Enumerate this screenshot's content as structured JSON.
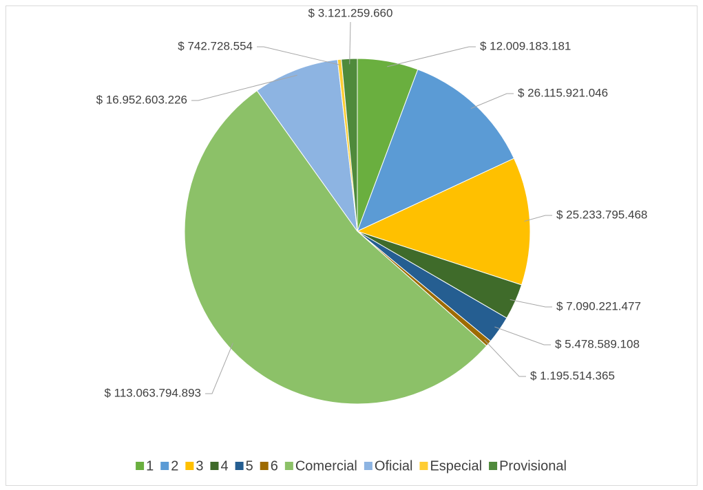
{
  "chart_data": {
    "type": "pie",
    "categories": [
      "1",
      "2",
      "3",
      "4",
      "5",
      "6",
      "Comercial",
      "Oficial",
      "Especial",
      "Provisional"
    ],
    "values": [
      12009183181,
      26115921046,
      25233795468,
      7090221477,
      5478589108,
      1195514365,
      113063794893,
      16952603226,
      742728554,
      3121259660
    ],
    "value_labels": [
      "$ 12.009.183.181",
      "$ 26.115.921.046",
      "$ 25.233.795.468",
      "$ 7.090.221.477",
      "$ 5.478.589.108",
      "$ 1.195.514.365",
      "$ 113.063.794.893",
      "$ 16.952.603.226",
      "$ 742.728.554",
      "$ 3.121.259.660"
    ],
    "colors": [
      "#6aaf3f",
      "#5b9bd5",
      "#ffc000",
      "#3f6b2a",
      "#255e91",
      "#9e6b00",
      "#8cc168",
      "#8db4e2",
      "#ffcd33",
      "#4f8a3b"
    ],
    "legend": "bottom"
  }
}
